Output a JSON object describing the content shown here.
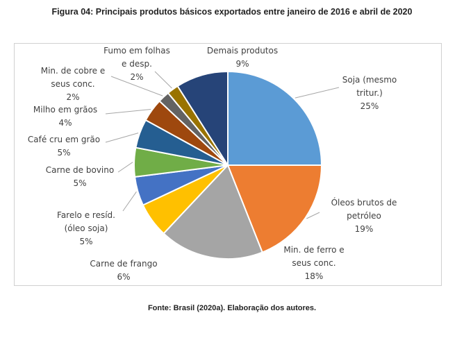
{
  "figure": {
    "title": "Figura 04: Principais produtos básicos exportados entre janeiro de 2016 e abril de 2020",
    "source": "Fonte: Brasil (2020a). Elaboração dos autores."
  },
  "chart_data": {
    "type": "pie",
    "title": "",
    "slices": [
      {
        "name": "Soja (mesmo tritur.)",
        "value": 25,
        "label": "25%",
        "label_lines": [
          "Soja (mesmo",
          "tritur.)"
        ],
        "color": "#5b9bd5"
      },
      {
        "name": "Óleos brutos de petróleo",
        "value": 19,
        "label": "19%",
        "label_lines": [
          "Óleos brutos de",
          "petróleo"
        ],
        "color": "#ed7d31"
      },
      {
        "name": "Min. de ferro e seus conc.",
        "value": 18,
        "label": "18%",
        "label_lines": [
          "Min. de ferro e",
          "seus conc."
        ],
        "color": "#a5a5a5"
      },
      {
        "name": "Carne de frango",
        "value": 6,
        "label": "6%",
        "label_lines": [
          "Carne de frango"
        ],
        "color": "#ffc000"
      },
      {
        "name": "Farelo e resíd. (óleo soja)",
        "value": 5,
        "label": "5%",
        "label_lines": [
          "Farelo e resíd.",
          "(óleo soja)"
        ],
        "color": "#4472c4"
      },
      {
        "name": "Carne de bovino",
        "value": 5,
        "label": "5%",
        "label_lines": [
          "Carne de bovino"
        ],
        "color": "#70ad47"
      },
      {
        "name": "Café cru em grão",
        "value": 5,
        "label": "5%",
        "label_lines": [
          "Café cru em grão"
        ],
        "color": "#255e91"
      },
      {
        "name": "Milho em grãos",
        "value": 4,
        "label": "4%",
        "label_lines": [
          "Milho em grãos"
        ],
        "color": "#9e480e"
      },
      {
        "name": "Min. de cobre e seus conc.",
        "value": 2,
        "label": "2%",
        "label_lines": [
          "Min. de cobre e",
          "seus conc."
        ],
        "color": "#636363"
      },
      {
        "name": "Fumo em folhas e desp.",
        "value": 2,
        "label": "2%",
        "label_lines": [
          "Fumo em folhas",
          "e desp."
        ],
        "color": "#997300"
      },
      {
        "name": "Demais produtos",
        "value": 9,
        "label": "9%",
        "label_lines": [
          "Demais produtos"
        ],
        "color": "#264478"
      }
    ]
  }
}
